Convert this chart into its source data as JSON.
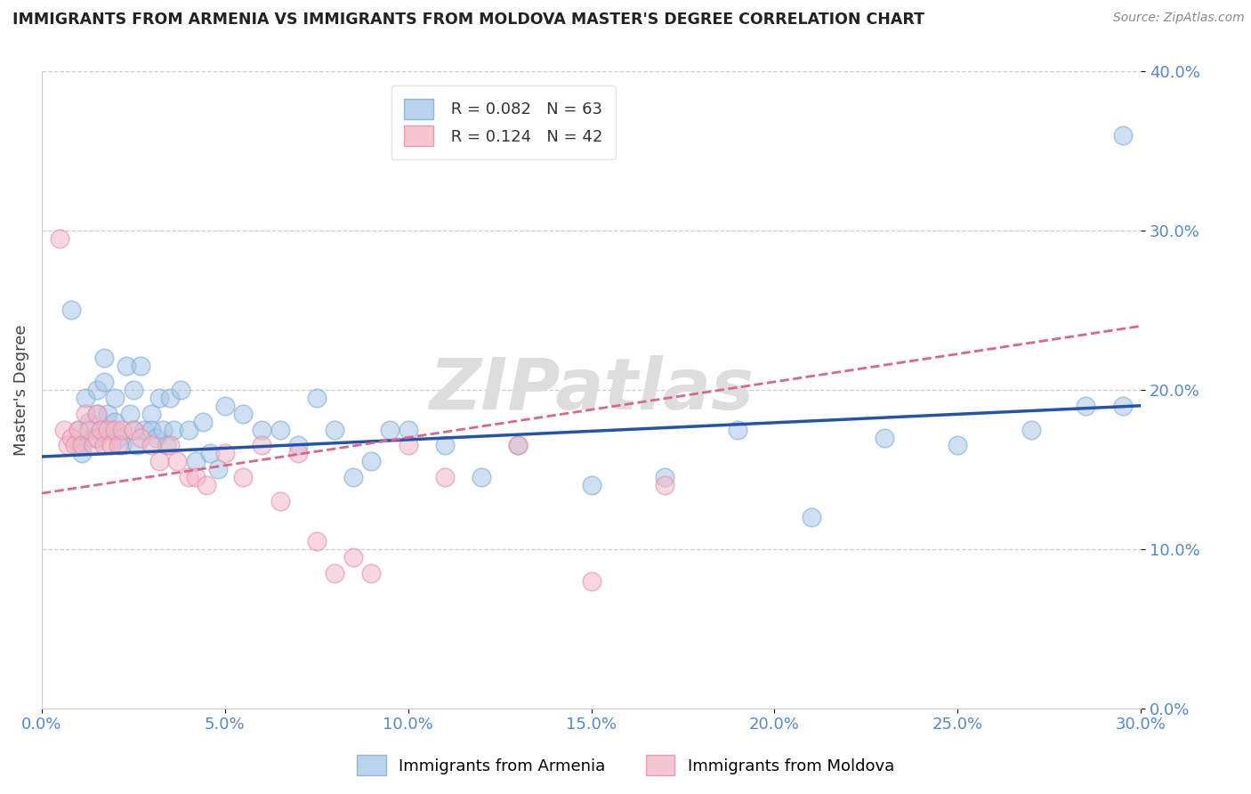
{
  "title": "IMMIGRANTS FROM ARMENIA VS IMMIGRANTS FROM MOLDOVA MASTER'S DEGREE CORRELATION CHART",
  "source": "Source: ZipAtlas.com",
  "ylabel": "Master's Degree",
  "legend_armenia": "Immigrants from Armenia",
  "legend_moldova": "Immigrants from Moldova",
  "r_armenia": 0.082,
  "n_armenia": 63,
  "r_moldova": 0.124,
  "n_moldova": 42,
  "color_armenia": "#a8c8e8",
  "color_moldova": "#f4b8c8",
  "color_armenia_edge": "#7aaad0",
  "color_moldova_edge": "#e888a8",
  "xlim": [
    0.0,
    0.3
  ],
  "ylim": [
    0.0,
    0.4
  ],
  "xticks": [
    0.0,
    0.05,
    0.1,
    0.15,
    0.2,
    0.25,
    0.3
  ],
  "yticks": [
    0.0,
    0.1,
    0.2,
    0.3,
    0.4
  ],
  "xtick_labels": [
    "0.0%",
    "5.0%",
    "10.0%",
    "15.0%",
    "20.0%",
    "25.0%",
    "30.0%"
  ],
  "ytick_labels": [
    "0.0%",
    "10.0%",
    "20.0%",
    "30.0%",
    "40.0%"
  ],
  "armenia_x": [
    0.008,
    0.01,
    0.01,
    0.011,
    0.012,
    0.013,
    0.014,
    0.015,
    0.015,
    0.016,
    0.017,
    0.017,
    0.018,
    0.019,
    0.02,
    0.02,
    0.021,
    0.022,
    0.023,
    0.024,
    0.025,
    0.025,
    0.026,
    0.027,
    0.028,
    0.03,
    0.03,
    0.031,
    0.032,
    0.033,
    0.034,
    0.035,
    0.036,
    0.038,
    0.04,
    0.042,
    0.044,
    0.046,
    0.048,
    0.05,
    0.055,
    0.06,
    0.065,
    0.07,
    0.075,
    0.08,
    0.085,
    0.09,
    0.095,
    0.1,
    0.11,
    0.12,
    0.13,
    0.15,
    0.17,
    0.19,
    0.21,
    0.23,
    0.25,
    0.27,
    0.285,
    0.295,
    0.295
  ],
  "armenia_y": [
    0.25,
    0.165,
    0.175,
    0.16,
    0.195,
    0.18,
    0.17,
    0.2,
    0.185,
    0.175,
    0.22,
    0.205,
    0.185,
    0.175,
    0.195,
    0.18,
    0.17,
    0.165,
    0.215,
    0.185,
    0.2,
    0.175,
    0.165,
    0.215,
    0.175,
    0.185,
    0.175,
    0.17,
    0.195,
    0.175,
    0.165,
    0.195,
    0.175,
    0.2,
    0.175,
    0.155,
    0.18,
    0.16,
    0.15,
    0.19,
    0.185,
    0.175,
    0.175,
    0.165,
    0.195,
    0.175,
    0.145,
    0.155,
    0.175,
    0.175,
    0.165,
    0.145,
    0.165,
    0.14,
    0.145,
    0.175,
    0.12,
    0.17,
    0.165,
    0.175,
    0.19,
    0.19,
    0.36
  ],
  "moldova_x": [
    0.005,
    0.006,
    0.007,
    0.008,
    0.009,
    0.01,
    0.011,
    0.012,
    0.013,
    0.014,
    0.015,
    0.015,
    0.016,
    0.017,
    0.018,
    0.019,
    0.02,
    0.021,
    0.022,
    0.025,
    0.027,
    0.03,
    0.032,
    0.035,
    0.037,
    0.04,
    0.042,
    0.045,
    0.05,
    0.055,
    0.06,
    0.065,
    0.07,
    0.075,
    0.08,
    0.085,
    0.09,
    0.1,
    0.11,
    0.13,
    0.15,
    0.17
  ],
  "moldova_y": [
    0.295,
    0.175,
    0.165,
    0.17,
    0.165,
    0.175,
    0.165,
    0.185,
    0.175,
    0.165,
    0.185,
    0.17,
    0.175,
    0.165,
    0.175,
    0.165,
    0.175,
    0.165,
    0.175,
    0.175,
    0.17,
    0.165,
    0.155,
    0.165,
    0.155,
    0.145,
    0.145,
    0.14,
    0.16,
    0.145,
    0.165,
    0.13,
    0.16,
    0.105,
    0.085,
    0.095,
    0.085,
    0.165,
    0.145,
    0.165,
    0.08,
    0.14
  ],
  "trend_armenia_x0": 0.0,
  "trend_armenia_y0": 0.158,
  "trend_armenia_x1": 0.3,
  "trend_armenia_y1": 0.19,
  "trend_moldova_x0": 0.0,
  "trend_moldova_y0": 0.135,
  "trend_moldova_x1": 0.3,
  "trend_moldova_y1": 0.24,
  "watermark": "ZIPatlas",
  "background_color": "#ffffff",
  "grid_color": "#cccccc"
}
